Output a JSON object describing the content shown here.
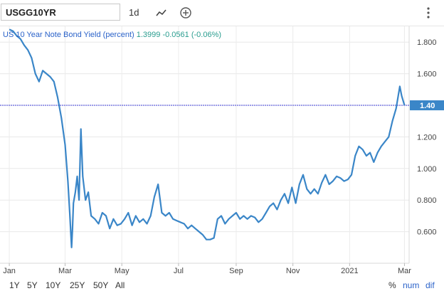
{
  "toolbar": {
    "ticker": "USGG10YR",
    "interval": "1d"
  },
  "chart": {
    "series_name": "US 10 Year Note Bond Yield (percent)",
    "last_value": "1.3999",
    "change": "-0.0561",
    "change_pct": "(-0.06%)",
    "price_tag": "1.40"
  },
  "range_buttons": [
    "1Y",
    "5Y",
    "10Y",
    "25Y",
    "50Y",
    "All"
  ],
  "right_controls": {
    "percent": "%",
    "num": "num",
    "dif": "dif"
  },
  "colors": {
    "line": "#3a86c8",
    "accent": "#2a62c9",
    "price_tag_bg": "#3a86c8",
    "change": "#2a9d8f"
  },
  "chart_data": {
    "type": "line",
    "title": "US 10 Year Note Bond Yield (percent)",
    "x_tick_labels": [
      "Jan",
      "Mar",
      "May",
      "Jul",
      "Sep",
      "Nov",
      "2021",
      "Mar"
    ],
    "y_tick_labels": [
      "0.600",
      "0.800",
      "1.000",
      "1.200",
      "1.400",
      "1.600",
      "1.800"
    ],
    "ylim": [
      0.4,
      1.9
    ],
    "grid": true,
    "series": [
      {
        "x": [
          "2020-01-01",
          "2020-01-05",
          "2020-01-09",
          "2020-01-13",
          "2020-01-17",
          "2020-01-21",
          "2020-01-25",
          "2020-01-29",
          "2020-02-02",
          "2020-02-06",
          "2020-02-10",
          "2020-02-14",
          "2020-02-18",
          "2020-02-22",
          "2020-02-26",
          "2020-03-01",
          "2020-03-04",
          "2020-03-06",
          "2020-03-08",
          "2020-03-09",
          "2020-03-10",
          "2020-03-12",
          "2020-03-14",
          "2020-03-16",
          "2020-03-18",
          "2020-03-20",
          "2020-03-23",
          "2020-03-26",
          "2020-03-29",
          "2020-04-02",
          "2020-04-06",
          "2020-04-10",
          "2020-04-14",
          "2020-04-18",
          "2020-04-22",
          "2020-04-26",
          "2020-04-30",
          "2020-05-04",
          "2020-05-08",
          "2020-05-12",
          "2020-05-16",
          "2020-05-20",
          "2020-05-24",
          "2020-05-28",
          "2020-06-01",
          "2020-06-05",
          "2020-06-09",
          "2020-06-13",
          "2020-06-17",
          "2020-06-21",
          "2020-06-25",
          "2020-06-29",
          "2020-07-03",
          "2020-07-07",
          "2020-07-11",
          "2020-07-15",
          "2020-07-19",
          "2020-07-23",
          "2020-07-27",
          "2020-07-31",
          "2020-08-04",
          "2020-08-08",
          "2020-08-12",
          "2020-08-16",
          "2020-08-20",
          "2020-08-24",
          "2020-08-28",
          "2020-09-01",
          "2020-09-05",
          "2020-09-09",
          "2020-09-13",
          "2020-09-17",
          "2020-09-21",
          "2020-09-25",
          "2020-09-29",
          "2020-10-03",
          "2020-10-07",
          "2020-10-11",
          "2020-10-15",
          "2020-10-19",
          "2020-10-23",
          "2020-10-27",
          "2020-10-31",
          "2020-11-04",
          "2020-11-08",
          "2020-11-12",
          "2020-11-16",
          "2020-11-20",
          "2020-11-24",
          "2020-11-28",
          "2020-12-02",
          "2020-12-06",
          "2020-12-10",
          "2020-12-14",
          "2020-12-18",
          "2020-12-22",
          "2020-12-26",
          "2020-12-30",
          "2021-01-03",
          "2021-01-07",
          "2021-01-11",
          "2021-01-15",
          "2021-01-19",
          "2021-01-23",
          "2021-01-27",
          "2021-01-31",
          "2021-02-04",
          "2021-02-08",
          "2021-02-12",
          "2021-02-16",
          "2021-02-20",
          "2021-02-24",
          "2021-02-26",
          "2021-03-01"
        ],
        "values": [
          1.88,
          1.87,
          1.84,
          1.82,
          1.78,
          1.75,
          1.7,
          1.6,
          1.55,
          1.62,
          1.6,
          1.58,
          1.55,
          1.45,
          1.32,
          1.15,
          0.92,
          0.72,
          0.5,
          0.62,
          0.78,
          0.85,
          0.95,
          0.8,
          1.25,
          0.95,
          0.8,
          0.85,
          0.7,
          0.68,
          0.65,
          0.72,
          0.7,
          0.62,
          0.68,
          0.64,
          0.65,
          0.68,
          0.72,
          0.64,
          0.7,
          0.66,
          0.68,
          0.65,
          0.7,
          0.82,
          0.9,
          0.72,
          0.7,
          0.72,
          0.68,
          0.67,
          0.66,
          0.65,
          0.62,
          0.64,
          0.62,
          0.6,
          0.58,
          0.55,
          0.55,
          0.56,
          0.68,
          0.7,
          0.65,
          0.68,
          0.7,
          0.72,
          0.68,
          0.7,
          0.68,
          0.7,
          0.69,
          0.66,
          0.68,
          0.72,
          0.76,
          0.78,
          0.74,
          0.8,
          0.84,
          0.78,
          0.88,
          0.78,
          0.9,
          0.96,
          0.87,
          0.84,
          0.87,
          0.84,
          0.91,
          0.96,
          0.9,
          0.92,
          0.95,
          0.94,
          0.92,
          0.93,
          0.96,
          1.08,
          1.14,
          1.12,
          1.08,
          1.1,
          1.04,
          1.1,
          1.14,
          1.17,
          1.2,
          1.3,
          1.38,
          1.52,
          1.46,
          1.4
        ]
      }
    ]
  }
}
